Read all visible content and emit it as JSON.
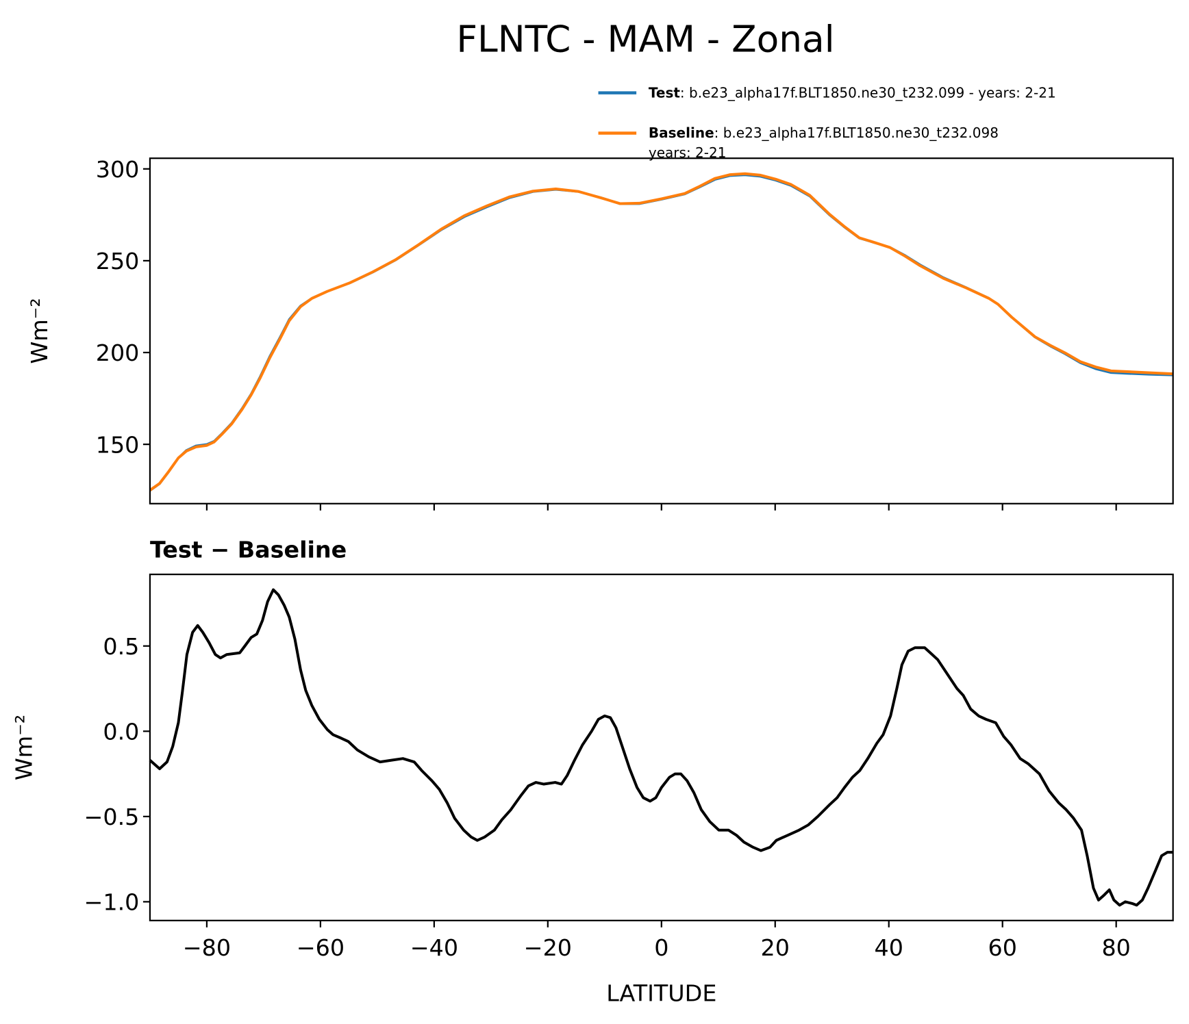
{
  "title": "FLNTC - MAM - Zonal",
  "chart_data": [
    {
      "type": "line",
      "ylabel": "Wm⁻²",
      "x": [
        -90,
        -88.3,
        -86.7,
        -85,
        -83.6,
        -81.9,
        -80,
        -78.7,
        -77.3,
        -75.6,
        -73.8,
        -72.2,
        -70.6,
        -68.9,
        -67.1,
        -65.5,
        -63.5,
        -61.5,
        -58.8,
        -54.8,
        -50.8,
        -46.8,
        -42.7,
        -38.7,
        -34.7,
        -30.7,
        -26.7,
        -22.6,
        -18.6,
        -14.6,
        -10.6,
        -7.3,
        -3.9,
        0,
        4.1,
        6.7,
        9.4,
        12.1,
        14.7,
        17.4,
        20.1,
        22.8,
        26.1,
        29.5,
        32.1,
        34.8,
        37.5,
        40.2,
        42.9,
        45.5,
        49.6,
        53.6,
        57.6,
        59.2,
        61.6,
        65.7,
        68.4,
        71.0,
        73.7,
        76.4,
        79.1,
        81.7,
        85.7,
        89.9
      ],
      "series": [
        {
          "name": "Test",
          "description": [
            ": b.e23_alpha17f.BLT1850.ne30_t232.099 - years: 2-21"
          ],
          "color": "#1f77b4",
          "values": [
            124.8,
            128.5,
            135,
            142.6,
            146.7,
            149.2,
            150,
            151.7,
            156,
            161.6,
            169.5,
            177.4,
            186.9,
            198,
            208.4,
            218,
            225.4,
            229.6,
            233.3,
            237.9,
            243.7,
            250.3,
            258.6,
            266.9,
            273.9,
            279.3,
            284.3,
            287.6,
            288.8,
            287.6,
            284.3,
            281,
            281,
            283.4,
            286.3,
            290.1,
            294.2,
            296.3,
            296.7,
            295.9,
            293.8,
            290.9,
            285.1,
            275.1,
            268.5,
            262.3,
            259.8,
            257.3,
            252.8,
            247.8,
            240.8,
            235.4,
            229.6,
            226.3,
            219.2,
            208.4,
            203.5,
            199.3,
            194.4,
            191.1,
            189,
            188.6,
            188.1,
            187.7
          ]
        },
        {
          "name": "Baseline",
          "description": [
            ": b.e23_alpha17f.BLT1850.ne30_t232.098",
            "years: 2-21"
          ],
          "color": "#ff7f0e",
          "values": [
            125.0,
            128.7,
            135.2,
            142.6,
            146.3,
            148.6,
            149.4,
            151.3,
            155.6,
            161.2,
            169.0,
            176.9,
            186.2,
            197.2,
            207.6,
            217.3,
            225.0,
            229.5,
            233.3,
            238.0,
            243.9,
            250.5,
            258.8,
            267.3,
            274.5,
            279.9,
            284.8,
            287.9,
            289.1,
            287.7,
            284.2,
            281.1,
            281.3,
            283.7,
            286.6,
            290.5,
            294.8,
            296.9,
            297.4,
            296.6,
            294.4,
            291.5,
            285.6,
            275.5,
            268.8,
            262.5,
            259.9,
            257.2,
            252.4,
            247.3,
            240.4,
            235.2,
            229.5,
            226.3,
            219.3,
            208.6,
            203.9,
            199.8,
            195.0,
            192.1,
            190.0,
            189.6,
            189.0,
            188.4
          ]
        }
      ],
      "xlim": [
        -90,
        90
      ],
      "xticks": [
        -80,
        -60,
        -40,
        -20,
        0,
        20,
        40,
        60,
        80
      ],
      "ylim": [
        117.7,
        305.8
      ],
      "yticks": [
        150,
        200,
        250,
        300
      ]
    },
    {
      "type": "line",
      "title": "Test − Baseline",
      "xlabel": "LATITUDE",
      "ylabel": "Wm⁻²",
      "x": [
        -90,
        -88.3,
        -87,
        -86,
        -85,
        -84.3,
        -83.5,
        -82.5,
        -81.6,
        -80.7,
        -79.6,
        -78.5,
        -77.6,
        -76.5,
        -74.2,
        -73.3,
        -72.2,
        -71.2,
        -70.2,
        -69.3,
        -68.3,
        -67.4,
        -66.4,
        -65.5,
        -64.5,
        -63.5,
        -62.6,
        -61.5,
        -60.2,
        -58.8,
        -57.8,
        -56.4,
        -55.1,
        -53.5,
        -51.5,
        -49.5,
        -47.5,
        -45.5,
        -43.5,
        -42.2,
        -40.4,
        -39.1,
        -37.7,
        -36.4,
        -34.8,
        -33.5,
        -32.4,
        -31.1,
        -29.4,
        -28.1,
        -26.5,
        -24.8,
        -23.4,
        -22.1,
        -20.7,
        -18.7,
        -17.6,
        -16.6,
        -15.3,
        -13.9,
        -12.3,
        -11.1,
        -10.0,
        -9.0,
        -8.0,
        -7.0,
        -5.6,
        -4.3,
        -3.2,
        -2.0,
        -1.0,
        0.0,
        1.4,
        2.4,
        3.4,
        4.5,
        5.7,
        7.0,
        8.5,
        10.1,
        11.8,
        13.2,
        14.5,
        16.1,
        17.5,
        19.1,
        20.2,
        22.2,
        24.2,
        25.8,
        27.5,
        29.6,
        30.9,
        32.2,
        33.6,
        34.9,
        36.3,
        37.9,
        39.0,
        40.3,
        41.4,
        42.3,
        43.4,
        44.6,
        46.3,
        47.3,
        48.6,
        50.0,
        52.0,
        53.1,
        54.4,
        55.8,
        57.1,
        58.8,
        60.2,
        61.5,
        63.1,
        64.5,
        66.5,
        68.2,
        69.9,
        71.2,
        72.5,
        73.9,
        74.9,
        76.0,
        76.9,
        77.9,
        78.8,
        79.6,
        80.6,
        81.6,
        82.8,
        83.6,
        84.6,
        85.6,
        87.0,
        88.0,
        89.0,
        89.9
      ],
      "series": [
        {
          "color": "#000000",
          "values": [
            -0.17,
            -0.22,
            -0.18,
            -0.09,
            0.05,
            0.23,
            0.45,
            0.58,
            0.62,
            0.58,
            0.52,
            0.45,
            0.43,
            0.45,
            0.46,
            0.5,
            0.55,
            0.57,
            0.65,
            0.76,
            0.83,
            0.8,
            0.74,
            0.67,
            0.54,
            0.36,
            0.24,
            0.15,
            0.07,
            0.01,
            -0.02,
            -0.04,
            -0.06,
            -0.11,
            -0.15,
            -0.18,
            -0.17,
            -0.16,
            -0.18,
            -0.23,
            -0.29,
            -0.34,
            -0.42,
            -0.51,
            -0.58,
            -0.62,
            -0.64,
            -0.62,
            -0.58,
            -0.52,
            -0.46,
            -0.38,
            -0.32,
            -0.3,
            -0.31,
            -0.3,
            -0.31,
            -0.26,
            -0.17,
            -0.08,
            0.0,
            0.07,
            0.09,
            0.08,
            0.02,
            -0.08,
            -0.22,
            -0.33,
            -0.39,
            -0.41,
            -0.39,
            -0.33,
            -0.27,
            -0.25,
            -0.25,
            -0.29,
            -0.36,
            -0.46,
            -0.53,
            -0.58,
            -0.58,
            -0.61,
            -0.65,
            -0.68,
            -0.7,
            -0.68,
            -0.64,
            -0.61,
            -0.58,
            -0.55,
            -0.5,
            -0.43,
            -0.39,
            -0.33,
            -0.27,
            -0.23,
            -0.16,
            -0.07,
            -0.02,
            0.09,
            0.25,
            0.39,
            0.47,
            0.49,
            0.49,
            0.46,
            0.42,
            0.35,
            0.25,
            0.21,
            0.13,
            0.09,
            0.07,
            0.05,
            -0.03,
            -0.08,
            -0.16,
            -0.19,
            -0.25,
            -0.35,
            -0.42,
            -0.46,
            -0.51,
            -0.58,
            -0.73,
            -0.92,
            -0.99,
            -0.96,
            -0.93,
            -0.99,
            -1.02,
            -1.0,
            -1.01,
            -1.02,
            -0.99,
            -0.92,
            -0.81,
            -0.73,
            -0.71,
            -0.71
          ]
        }
      ],
      "xlim": [
        -90,
        90
      ],
      "xticks": [
        {
          "value": -80,
          "label": "−80"
        },
        {
          "value": -60,
          "label": "−60"
        },
        {
          "value": -40,
          "label": "−40"
        },
        {
          "value": -20,
          "label": "−20"
        },
        0,
        20,
        40,
        60,
        80
      ],
      "ylim": [
        -1.11,
        0.92
      ],
      "yticks": [
        {
          "value": -1.0,
          "label": "−1.0"
        },
        {
          "value": -0.5,
          "label": "−0.5"
        },
        {
          "value": 0.0,
          "label": "0.0"
        },
        0.5
      ]
    }
  ]
}
